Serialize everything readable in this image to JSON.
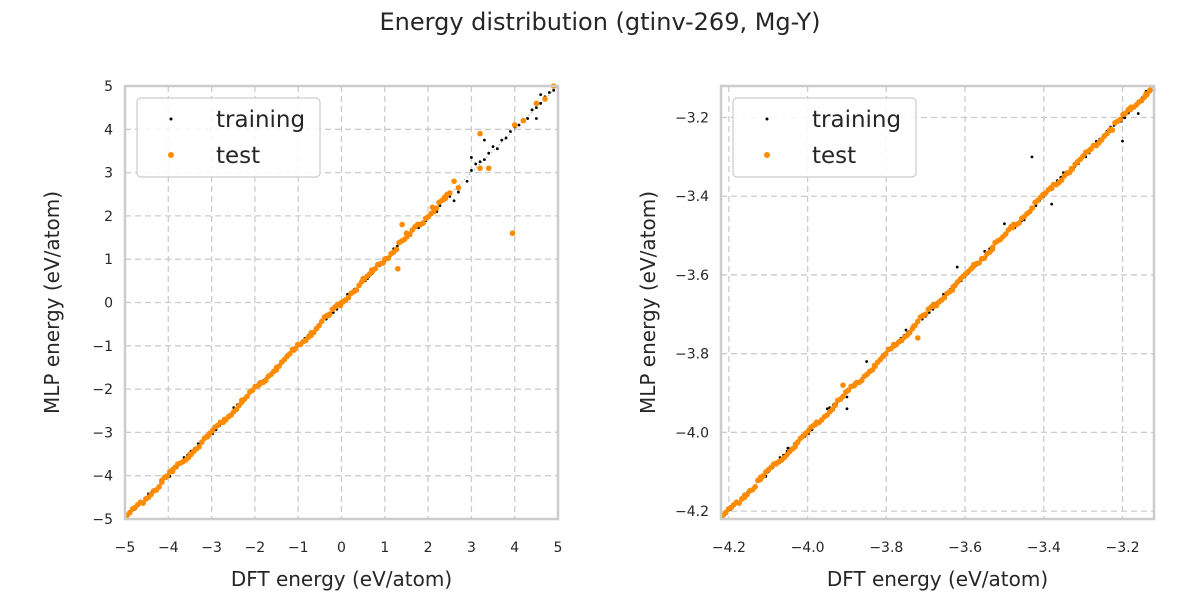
{
  "figure_title": "Energy distribution (gtinv-269, Mg-Y)",
  "colors": {
    "training": "#000000",
    "test": "#ff8c00",
    "grid": "#cccccc",
    "axis": "#cccccc"
  },
  "chart_data": [
    {
      "type": "scatter",
      "xlabel": "DFT energy (eV/atom)",
      "ylabel": "MLP energy (eV/atom)",
      "xlim": [
        -5,
        5
      ],
      "ylim": [
        -5,
        5
      ],
      "xticks": [
        -5,
        -4,
        -3,
        -2,
        -1,
        0,
        1,
        2,
        3,
        4,
        5
      ],
      "yticks": [
        -5,
        -4,
        -3,
        -2,
        -1,
        0,
        1,
        2,
        3,
        4,
        5
      ],
      "grid": true,
      "legend_position": "top-left",
      "reference_line": "y = x (dotted)",
      "series": [
        {
          "name": "training",
          "color": "#000000",
          "points": [
            [
              -4.15,
              -4.15
            ],
            [
              -3.8,
              -3.8
            ],
            [
              -3.4,
              -3.4
            ],
            [
              -3.0,
              -3.0
            ],
            [
              -2.6,
              -2.6
            ],
            [
              -2.2,
              -2.2
            ],
            [
              -1.8,
              -1.8
            ],
            [
              -1.4,
              -1.4
            ],
            [
              -1.0,
              -1.0
            ],
            [
              -0.6,
              -0.62
            ],
            [
              -0.2,
              -0.22
            ],
            [
              0.2,
              0.18
            ],
            [
              0.6,
              0.55
            ],
            [
              1.0,
              0.95
            ],
            [
              1.3,
              1.22
            ],
            [
              1.6,
              1.55
            ],
            [
              1.9,
              1.85
            ],
            [
              2.2,
              2.1
            ],
            [
              2.5,
              2.45
            ],
            [
              2.7,
              2.55
            ],
            [
              2.9,
              2.8
            ],
            [
              3.0,
              3.05
            ],
            [
              3.1,
              3.2
            ],
            [
              3.2,
              3.25
            ],
            [
              3.3,
              3.3
            ],
            [
              3.4,
              3.45
            ],
            [
              3.5,
              3.6
            ],
            [
              3.6,
              3.55
            ],
            [
              3.7,
              3.75
            ],
            [
              3.8,
              3.8
            ],
            [
              3.9,
              3.95
            ],
            [
              4.0,
              4.05
            ],
            [
              4.1,
              4.1
            ],
            [
              4.2,
              4.2
            ],
            [
              4.3,
              4.25
            ],
            [
              4.4,
              4.45
            ],
            [
              4.5,
              4.5
            ],
            [
              4.6,
              4.6
            ],
            [
              4.7,
              4.75
            ],
            [
              4.8,
              4.85
            ],
            [
              4.9,
              4.9
            ],
            [
              3.3,
              3.75
            ],
            [
              4.5,
              4.25
            ],
            [
              2.6,
              2.35
            ],
            [
              3.0,
              3.35
            ],
            [
              4.6,
              4.8
            ]
          ]
        },
        {
          "name": "test",
          "color": "#ff8c00",
          "points": [
            [
              -4.15,
              -4.15
            ],
            [
              -3.9,
              -3.9
            ],
            [
              -3.5,
              -3.5
            ],
            [
              -3.1,
              -3.1
            ],
            [
              -2.7,
              -2.7
            ],
            [
              -2.3,
              -2.3
            ],
            [
              -1.9,
              -1.9
            ],
            [
              -1.5,
              -1.5
            ],
            [
              -1.1,
              -1.1
            ],
            [
              -0.7,
              -0.7
            ],
            [
              -0.3,
              -0.3
            ],
            [
              0.0,
              0.0
            ],
            [
              0.5,
              0.55
            ],
            [
              0.7,
              0.75
            ],
            [
              1.0,
              1.0
            ],
            [
              1.3,
              0.78
            ],
            [
              1.4,
              1.8
            ],
            [
              1.5,
              1.6
            ],
            [
              1.8,
              1.8
            ],
            [
              2.1,
              2.2
            ],
            [
              2.4,
              2.4
            ],
            [
              2.6,
              2.8
            ],
            [
              2.7,
              2.65
            ],
            [
              3.2,
              3.9
            ],
            [
              3.2,
              3.1
            ],
            [
              3.4,
              3.1
            ],
            [
              3.95,
              1.6
            ],
            [
              4.0,
              4.1
            ],
            [
              4.2,
              4.2
            ],
            [
              4.5,
              4.6
            ],
            [
              4.7,
              4.7
            ],
            [
              4.9,
              5.0
            ]
          ]
        }
      ]
    },
    {
      "type": "scatter",
      "xlabel": "DFT energy (eV/atom)",
      "ylabel": "MLP energy (eV/atom)",
      "xlim": [
        -4.22,
        -3.12
      ],
      "ylim": [
        -4.22,
        -3.12
      ],
      "xticks": [
        -4.2,
        -4.0,
        -3.8,
        -3.6,
        -3.4,
        -3.2
      ],
      "yticks": [
        -4.2,
        -4.0,
        -3.8,
        -3.6,
        -3.4,
        -3.2
      ],
      "xtick_labels": [
        "−4.2",
        "−4.0",
        "−3.8",
        "−3.6",
        "−3.4",
        "−3.2"
      ],
      "ytick_labels": [
        "−4.2",
        "−4.0",
        "−3.8",
        "−3.6",
        "−3.4",
        "−3.2"
      ],
      "grid": true,
      "legend_position": "top-left",
      "reference_line": "y = x (dotted)",
      "series": [
        {
          "name": "training",
          "color": "#000000",
          "points": [
            [
              -4.16,
              -4.16
            ],
            [
              -4.1,
              -4.1
            ],
            [
              -4.05,
              -4.04
            ],
            [
              -4.0,
              -4.0
            ],
            [
              -3.95,
              -3.94
            ],
            [
              -3.9,
              -3.91
            ],
            [
              -3.85,
              -3.85
            ],
            [
              -3.8,
              -3.8
            ],
            [
              -3.75,
              -3.74
            ],
            [
              -3.7,
              -3.7
            ],
            [
              -3.65,
              -3.66
            ],
            [
              -3.6,
              -3.6
            ],
            [
              -3.55,
              -3.54
            ],
            [
              -3.5,
              -3.5
            ],
            [
              -3.45,
              -3.46
            ],
            [
              -3.4,
              -3.4
            ],
            [
              -3.35,
              -3.34
            ],
            [
              -3.3,
              -3.3
            ],
            [
              -3.25,
              -3.25
            ],
            [
              -3.2,
              -3.2
            ],
            [
              -3.15,
              -3.15
            ],
            [
              -3.43,
              -3.3
            ],
            [
              -3.2,
              -3.26
            ],
            [
              -3.85,
              -3.82
            ],
            [
              -3.9,
              -3.94
            ],
            [
              -3.62,
              -3.58
            ],
            [
              -3.12,
              -3.13
            ],
            [
              -3.16,
              -3.19
            ],
            [
              -3.38,
              -3.42
            ],
            [
              -3.5,
              -3.47
            ]
          ]
        },
        {
          "name": "test",
          "color": "#ff8c00",
          "points": [
            [
              -4.16,
              -4.16
            ],
            [
              -4.12,
              -4.12
            ],
            [
              -4.08,
              -4.08
            ],
            [
              -4.03,
              -4.03
            ],
            [
              -3.98,
              -3.98
            ],
            [
              -3.93,
              -3.93
            ],
            [
              -3.88,
              -3.88
            ],
            [
              -3.83,
              -3.83
            ],
            [
              -3.78,
              -3.78
            ],
            [
              -3.73,
              -3.73
            ],
            [
              -3.68,
              -3.68
            ],
            [
              -3.63,
              -3.63
            ],
            [
              -3.58,
              -3.58
            ],
            [
              -3.53,
              -3.53
            ],
            [
              -3.48,
              -3.48
            ],
            [
              -3.43,
              -3.43
            ],
            [
              -3.38,
              -3.38
            ],
            [
              -3.33,
              -3.33
            ],
            [
              -3.28,
              -3.28
            ],
            [
              -3.23,
              -3.23
            ],
            [
              -3.18,
              -3.18
            ],
            [
              -3.14,
              -3.14
            ],
            [
              -3.13,
              -3.13
            ],
            [
              -3.72,
              -3.76
            ],
            [
              -3.91,
              -3.88
            ]
          ]
        }
      ]
    }
  ]
}
